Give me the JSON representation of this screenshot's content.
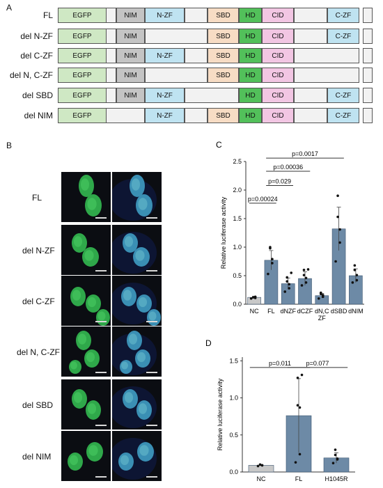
{
  "panel_a": {
    "letter": "A",
    "constructs": [
      {
        "label": "FL",
        "segments": [
          "EGFP",
          "blank",
          "NIM",
          "N-ZF",
          "blank",
          "SBD",
          "HD",
          "CID",
          "blank",
          "C-ZF",
          "blank"
        ]
      },
      {
        "label": "del N-ZF",
        "segments": [
          "EGFP",
          "blank",
          "NIM",
          "blank",
          "SBD",
          "HD",
          "CID",
          "blank",
          "C-ZF",
          "blank"
        ]
      },
      {
        "label": "del C-ZF",
        "segments": [
          "EGFP",
          "blank",
          "NIM",
          "N-ZF",
          "blank",
          "SBD",
          "HD",
          "CID",
          "blank",
          "blank"
        ]
      },
      {
        "label": "del N, C-ZF",
        "segments": [
          "EGFP",
          "blank",
          "NIM",
          "blank",
          "SBD",
          "HD",
          "CID",
          "blank",
          "blank"
        ]
      },
      {
        "label": "del SBD",
        "segments": [
          "EGFP",
          "blank",
          "NIM",
          "N-ZF",
          "blank",
          "HD",
          "CID",
          "blank",
          "C-ZF",
          "blank"
        ]
      },
      {
        "label": "del NIM",
        "segments": [
          "EGFP",
          "blank",
          "N-ZF",
          "blank",
          "SBD",
          "HD",
          "CID",
          "blank",
          "C-ZF",
          "blank"
        ]
      }
    ],
    "colors": {
      "EGFP": "#cfe8c4",
      "NIM": "#c4c4c4",
      "N-ZF": "#bfe3f1",
      "SBD": "#f7dcc4",
      "HD": "#52c05a",
      "CID": "#f2c6e3",
      "C-ZF": "#bfe3f1",
      "blank": "#f2f2f2"
    }
  },
  "panel_b": {
    "letter": "B",
    "rows": [
      "FL",
      "del N-ZF",
      "del C-ZF",
      "del N, C-ZF",
      "del SBD",
      "del NIM"
    ]
  },
  "chart_data": [
    {
      "panel": "C",
      "type": "bar",
      "categories": [
        "NC",
        "FL",
        "dNZF",
        "dCZF",
        "dN,C ZF",
        "dSBD",
        "dNIM"
      ],
      "values": [
        0.12,
        0.77,
        0.36,
        0.45,
        0.15,
        1.32,
        0.5
      ],
      "errors": [
        0.02,
        0.17,
        0.1,
        0.12,
        0.04,
        0.38,
        0.12
      ],
      "points": [
        [
          0.1,
          0.11,
          0.13,
          0.12
        ],
        [
          0.53,
          0.72,
          0.79,
          0.98,
          1.0
        ],
        [
          0.22,
          0.28,
          0.35,
          0.4,
          0.47,
          0.55
        ],
        [
          0.33,
          0.38,
          0.46,
          0.51,
          0.6,
          0.61
        ],
        [
          0.1,
          0.13,
          0.16,
          0.18,
          0.2
        ],
        [
          0.75,
          1.08,
          1.31,
          1.53,
          1.9
        ],
        [
          0.38,
          0.42,
          0.51,
          0.6,
          0.68
        ]
      ],
      "colors": [
        "#c8c8c8",
        "#6d8aa6",
        "#6d8aa6",
        "#6d8aa6",
        "#6d8aa6",
        "#6d8aa6",
        "#6d8aa6"
      ],
      "ylabel": "Relative luciferase activity",
      "yticks": [
        "0.0",
        "0.5",
        "1.0",
        "1.5",
        "2.0",
        "2.5"
      ],
      "ylim": [
        0,
        2.5
      ],
      "comparisons": [
        {
          "from": 0,
          "to": 1,
          "text": "p=0.00024",
          "y": 1.77
        },
        {
          "from": 1,
          "to": 2,
          "text": "p=0.029",
          "y": 2.08
        },
        {
          "from": 1,
          "to": 3,
          "text": "p=0.00036",
          "y": 2.33
        },
        {
          "from": 1,
          "to": 5,
          "text": "p=0.0017",
          "y": 2.56
        }
      ]
    },
    {
      "panel": "D",
      "type": "bar",
      "categories": [
        "NC",
        "FL",
        "H1045R"
      ],
      "values": [
        0.09,
        0.76,
        0.19
      ],
      "errors": [
        0.01,
        0.5,
        0.07
      ],
      "points": [
        [
          0.08,
          0.09,
          0.09,
          0.1
        ],
        [
          0.13,
          0.24,
          0.87,
          0.9,
          1.27,
          1.31
        ],
        [
          0.12,
          0.17,
          0.18,
          0.23,
          0.3
        ]
      ],
      "colors": [
        "#c8c8c8",
        "#6d8aa6",
        "#6d8aa6"
      ],
      "ylabel": "Relative luciferase activity",
      "yticks": [
        "0.0",
        "0.5",
        "1.0",
        "1.5"
      ],
      "ylim": [
        0,
        1.55
      ],
      "comparisons": [
        {
          "from": 0,
          "to": 1,
          "text": "p=0.011",
          "y": 1.41
        },
        {
          "from": 1,
          "to": 2,
          "text": "p=0.077",
          "y": 1.41
        }
      ]
    }
  ]
}
